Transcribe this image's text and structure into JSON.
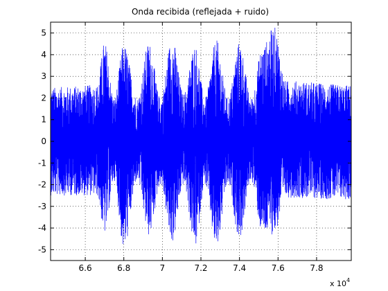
{
  "chart_data": {
    "type": "line",
    "title": "Onda recibida (reflejada + ruido)",
    "xlabel": "",
    "ylabel": "",
    "x_exponent_label": "x 10",
    "x_exponent_power": "4",
    "xlim": [
      6.42,
      7.98
    ],
    "ylim": [
      -5.5,
      5.5
    ],
    "x_ticks": [
      6.6,
      6.8,
      7.0,
      7.2,
      7.4,
      7.6,
      7.8
    ],
    "x_tick_labels": [
      "6.6",
      "6.8",
      "7",
      "7.2",
      "7.4",
      "7.6",
      "7.8"
    ],
    "y_ticks": [
      5,
      4,
      3,
      2,
      1,
      0,
      -1,
      -2,
      -3,
      -4,
      -5
    ],
    "y_tick_labels": [
      "5",
      "4",
      "3",
      "2",
      "1",
      "0",
      "-1",
      "-2",
      "-3",
      "-4",
      "-5"
    ],
    "grid": true,
    "grid_style": "dotted",
    "legend": "none",
    "series": [
      {
        "color": "#0000ff",
        "description_points": {
          "x": [
            6.42,
            6.66,
            6.7,
            6.75,
            6.8,
            6.87,
            6.93,
            6.99,
            7.05,
            7.11,
            7.17,
            7.22,
            7.28,
            7.34,
            7.4,
            7.46,
            7.52,
            7.58,
            7.64,
            7.98
          ],
          "upper_envelope": [
            2.5,
            2.6,
            4.6,
            2.0,
            4.5,
            2.0,
            4.6,
            2.0,
            4.8,
            2.2,
            4.5,
            2.0,
            4.7,
            2.0,
            4.6,
            2.0,
            4.4,
            5.3,
            2.8,
            2.6
          ],
          "lower_envelope": [
            -2.5,
            -2.5,
            -4.3,
            -1.8,
            -5.0,
            -1.8,
            -4.4,
            -2.0,
            -4.7,
            -2.0,
            -4.9,
            -2.0,
            -5.0,
            -2.0,
            -4.5,
            -1.8,
            -4.3,
            -4.3,
            -2.6,
            -2.7
          ]
        }
      }
    ]
  }
}
